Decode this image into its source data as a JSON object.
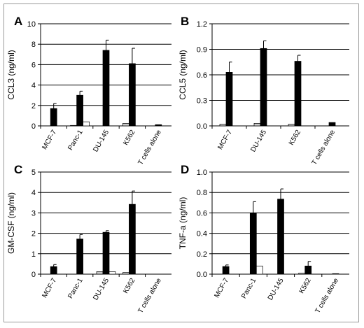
{
  "chart_data": [
    {
      "panel": "A",
      "type": "bar",
      "ylabel": "CCL3 (ng/ml)",
      "ylim": [
        0,
        10
      ],
      "yticks": [
        0,
        2,
        4,
        6,
        8,
        10
      ],
      "categories": [
        "MCF-7",
        "Panc-1",
        "DU-145",
        "K562",
        "T cells alone"
      ],
      "series": [
        {
          "color": "#c8c8c8",
          "values": [
            0.0,
            0.05,
            0.0,
            0.25,
            0.0
          ],
          "errors": [
            0,
            0,
            0,
            0,
            0
          ]
        },
        {
          "color": "#000000",
          "values": [
            1.7,
            3.0,
            7.4,
            6.1,
            0.12
          ],
          "errors": [
            0.5,
            0.4,
            1.0,
            1.5,
            0
          ]
        },
        {
          "color": "#ffffff",
          "values": [
            0.0,
            0.4,
            0.0,
            0.0,
            0.0
          ],
          "errors": [
            0,
            0,
            0,
            0,
            0
          ]
        }
      ]
    },
    {
      "panel": "B",
      "type": "bar",
      "ylabel": "CCL5 (ng/ml)",
      "ylim": [
        0,
        1.2
      ],
      "yticks": [
        0,
        0.3,
        0.6,
        0.9,
        1.2
      ],
      "categories": [
        "MCF-7",
        "DU-145",
        "K562",
        "T cells alone"
      ],
      "series": [
        {
          "color": "#c8c8c8",
          "values": [
            0.02,
            0.03,
            0.02,
            0.0
          ],
          "errors": [
            0,
            0,
            0,
            0
          ]
        },
        {
          "color": "#000000",
          "values": [
            0.63,
            0.91,
            0.76,
            0.04
          ],
          "errors": [
            0.12,
            0.09,
            0.07,
            0
          ]
        },
        {
          "color": "#ffffff",
          "values": [
            0.0,
            0.0,
            0.0,
            0.0
          ],
          "errors": [
            0,
            0,
            0,
            0
          ]
        }
      ]
    },
    {
      "panel": "C",
      "type": "bar",
      "ylabel": "GM-CSF (ng/ml)",
      "ylim": [
        0,
        5
      ],
      "yticks": [
        0,
        1,
        2,
        3,
        4,
        5
      ],
      "categories": [
        "MCF-7",
        "Panc-1",
        "DU-145",
        "K562",
        "T cells alone"
      ],
      "series": [
        {
          "color": "#c8c8c8",
          "values": [
            0.0,
            0.0,
            0.12,
            0.08,
            0.0
          ],
          "errors": [
            0,
            0,
            0,
            0,
            0
          ]
        },
        {
          "color": "#000000",
          "values": [
            0.37,
            1.72,
            2.05,
            3.42,
            0.0
          ],
          "errors": [
            0.1,
            0.22,
            0.08,
            0.65,
            0
          ]
        },
        {
          "color": "#ffffff",
          "values": [
            0.0,
            0.0,
            0.12,
            0.0,
            0.0
          ],
          "errors": [
            0,
            0,
            0,
            0,
            0
          ]
        }
      ]
    },
    {
      "panel": "D",
      "type": "bar",
      "ylabel": "TNF-a (ng/ml)",
      "ylim": [
        0,
        1.0
      ],
      "yticks": [
        0,
        0.2,
        0.4,
        0.6,
        0.8,
        1.0
      ],
      "categories": [
        "MCF-7",
        "Panc-1",
        "DU-145",
        "K562",
        "T cells alone"
      ],
      "series": [
        {
          "color": "#c8c8c8",
          "values": [
            0.0,
            0.0,
            0.0,
            0.01,
            0.0
          ],
          "errors": [
            0,
            0,
            0,
            0,
            0
          ]
        },
        {
          "color": "#000000",
          "values": [
            0.075,
            0.6,
            0.735,
            0.08,
            0.005
          ],
          "errors": [
            0.015,
            0.11,
            0.1,
            0.045,
            0
          ]
        },
        {
          "color": "#ffffff",
          "values": [
            0.0,
            0.08,
            0.0,
            0.0,
            0.0
          ],
          "errors": [
            0,
            0,
            0,
            0,
            0
          ]
        }
      ]
    }
  ]
}
